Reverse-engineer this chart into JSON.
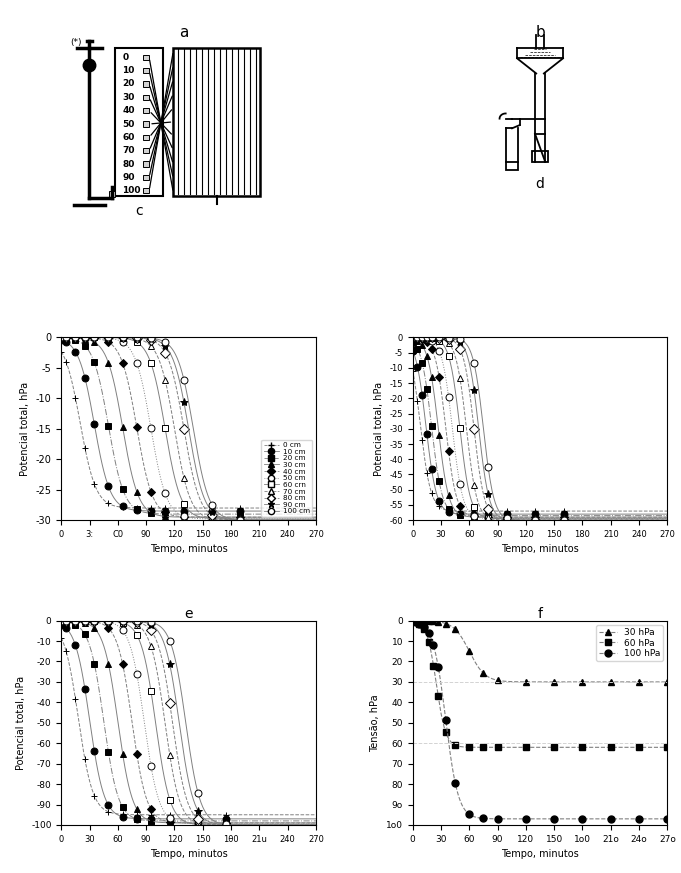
{
  "title_a": "a",
  "title_b": "b",
  "title_c": "c",
  "title_d": "d",
  "title_e": "e",
  "title_f": "f",
  "xlabel": "Tempo, minutos",
  "ylabel_potential": "Potencial total, hPa",
  "ylabel_tension": "Tensão, hPa",
  "depths": [
    "0 cm",
    "10 cm",
    "20 cm",
    "30 cm",
    "40 cm",
    "50 cm",
    "60 crn",
    "70 cm",
    "80 cm",
    "90 cm",
    "100 cm"
  ],
  "legend_f": [
    "30 hPa",
    "60 hPa",
    "100 hPa"
  ],
  "markers": [
    "+",
    "o",
    "s",
    "^",
    "D",
    "o",
    "s",
    "^",
    "D",
    "*",
    "o"
  ],
  "linestyles": [
    "--",
    "-",
    "-.",
    "-",
    "--",
    ":",
    "-",
    "--",
    "none",
    "-",
    "-"
  ],
  "markerfills": [
    "k",
    "k",
    "k",
    "k",
    "k",
    "none",
    "none",
    "none",
    "none",
    "k",
    "none"
  ],
  "msizes": [
    5,
    5,
    5,
    5,
    4,
    5,
    5,
    4,
    5,
    6,
    5
  ],
  "panel_c_finals": [
    -28,
    -28.5,
    -29,
    -29.5,
    -29.5,
    -29.8,
    -29.8,
    -30,
    -30,
    -30,
    -30
  ],
  "panel_c_tmids": [
    20,
    35,
    50,
    65,
    80,
    95,
    110,
    120,
    130,
    135,
    140
  ],
  "panel_d_finals": [
    -57,
    -58,
    -58.5,
    -59,
    -59,
    -59.5,
    -59.5,
    -60,
    -60,
    -60,
    -60
  ],
  "panel_d_tmids": [
    8,
    14,
    20,
    27,
    35,
    42,
    50,
    57,
    65,
    70,
    75
  ],
  "panel_e_finals": [
    -95,
    -97,
    -98,
    -99,
    -99,
    -99.5,
    -100,
    -100,
    -100,
    -100,
    -100
  ],
  "panel_e_tmids": [
    18,
    30,
    45,
    60,
    75,
    88,
    100,
    110,
    118,
    125,
    132
  ],
  "panel_c_slope": 0.12,
  "panel_d_slope": 0.18,
  "panel_e_slope": 0.13
}
